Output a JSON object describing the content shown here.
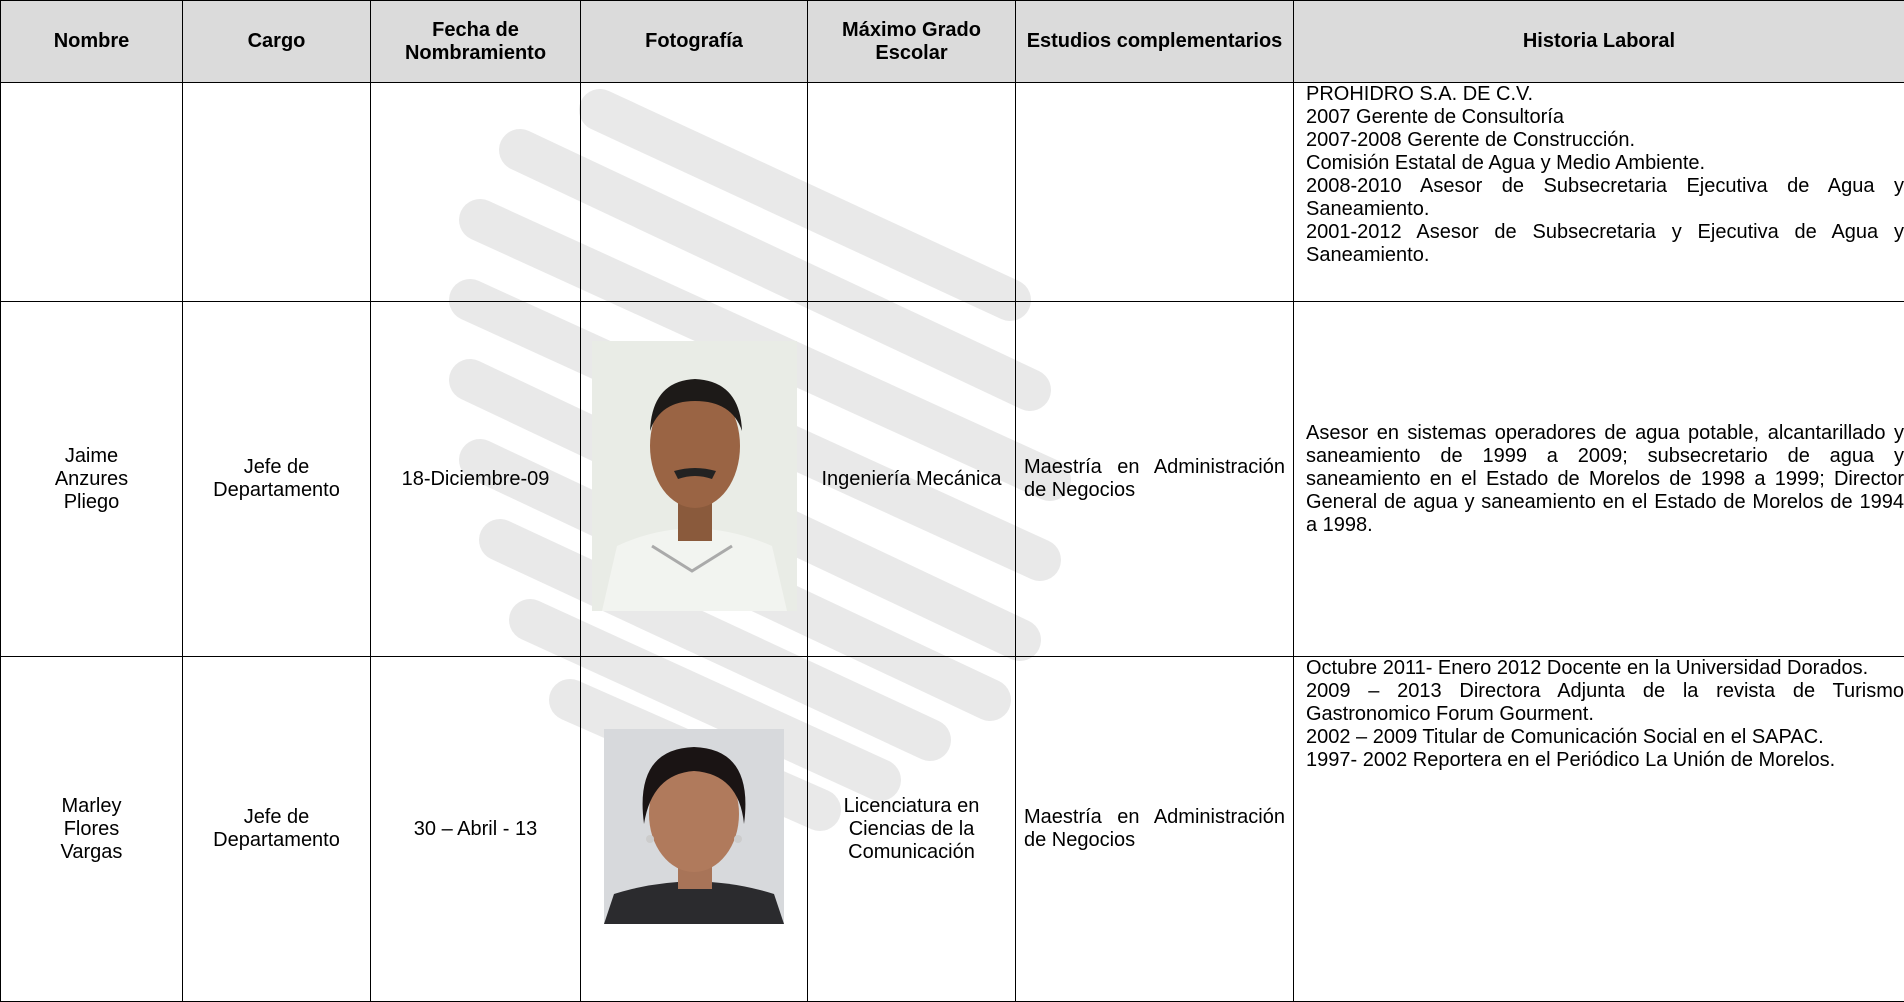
{
  "table": {
    "headers": [
      "Nombre",
      "Cargo",
      "Fecha de Nombramiento",
      "Fotografía",
      "Máximo Grado Escolar",
      "Estudios complementarios",
      "Historia Laboral"
    ],
    "rows": [
      {
        "nombre": "",
        "cargo": "",
        "fecha": "",
        "grado": "",
        "estudios": "",
        "historia": [
          "PROHIDRO S.A. DE C.V.",
          "2007 Gerente de Consultoría",
          "2007-2008 Gerente de Construcción.",
          "Comisión Estatal de Agua y Medio Ambiente.",
          "2008-2010 Asesor de Subsecretaria Ejecutiva de Agua y Saneamiento.",
          "2001-2012 Asesor de Subsecretaria y Ejecutiva de Agua y Saneamiento."
        ]
      },
      {
        "nombre": "Jaime Anzures Pliego",
        "cargo": "Jefe de Departamento",
        "fecha": "18-Diciembre-09",
        "grado": "Ingeniería Mecánica",
        "estudios": "Maestría en Administración de Negocios",
        "historia": [
          "Asesor en sistemas operadores de agua potable, alcantarillado y saneamiento de 1999 a 2009; subsecretario de agua y saneamiento en el Estado de Morelos de 1998 a 1999; Director General de agua y saneamiento en el Estado de Morelos de 1994 a 1998."
        ]
      },
      {
        "nombre": "Marley Flores Vargas",
        "cargo": "Jefe de Departamento",
        "fecha": "30 – Abril - 13",
        "grado": "Licenciatura en Ciencias de la Comunicación",
        "estudios": "Maestría en Administración de Negocios",
        "historia": [
          "Octubre 2011- Enero 2012 Docente en la Universidad Dorados.",
          "2009 – 2013 Directora Adjunta de la revista de Turismo Gastronomico Forum Gourment.",
          "2002 – 2009 Titular de Comunicación Social en el SAPAC.",
          "1997- 2002 Reportera en el Periódico La Unión de Morelos."
        ]
      }
    ]
  }
}
